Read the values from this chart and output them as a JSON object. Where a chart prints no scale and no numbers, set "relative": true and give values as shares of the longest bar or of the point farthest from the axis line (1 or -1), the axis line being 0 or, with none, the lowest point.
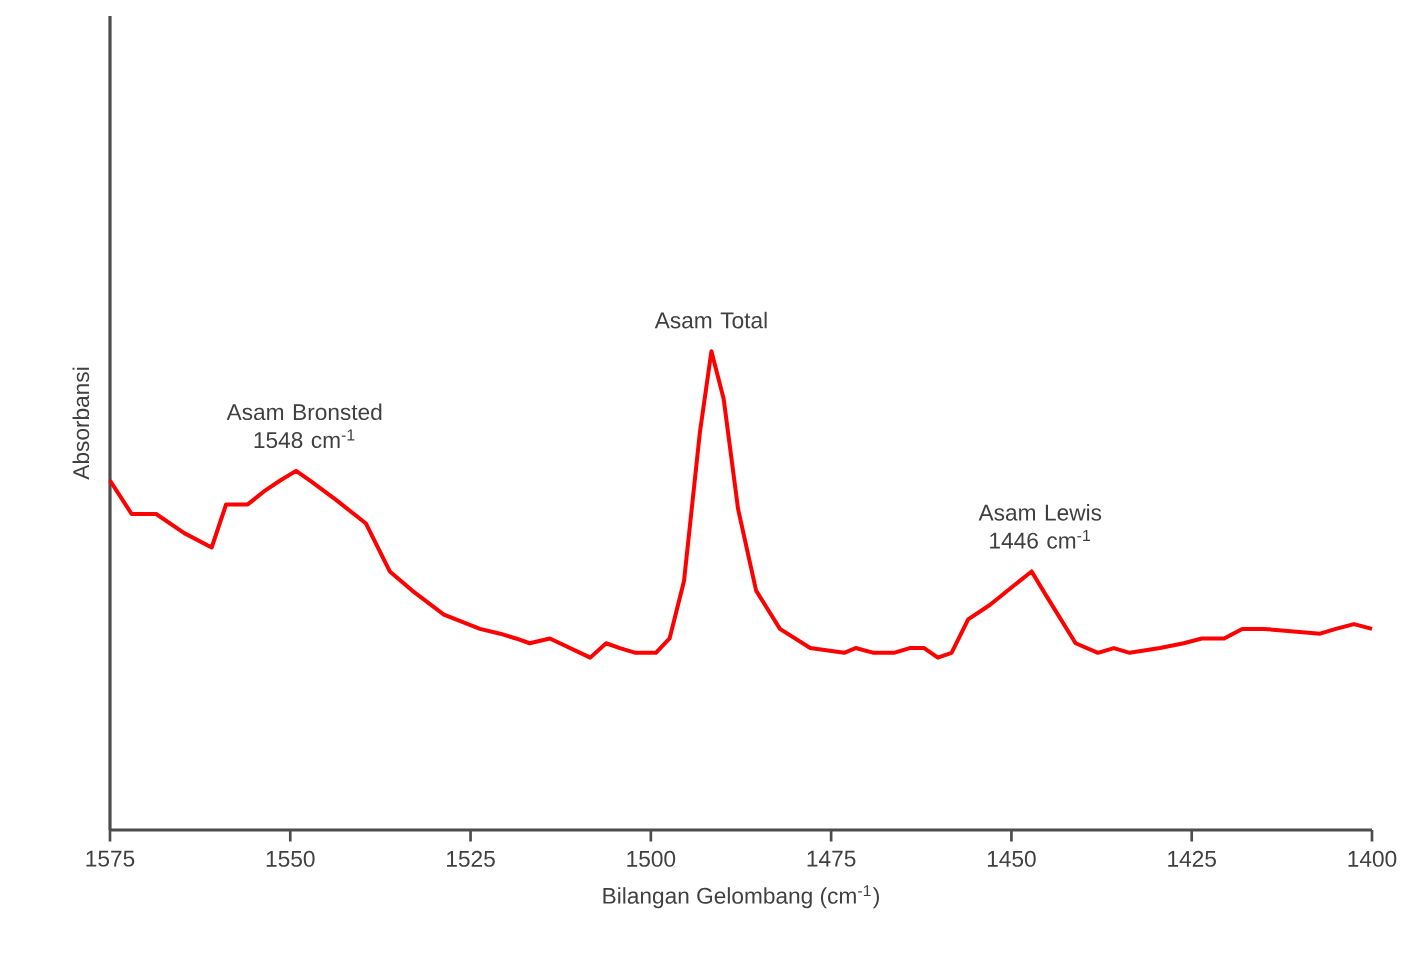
{
  "chart_data": {
    "type": "line",
    "relative": true,
    "xlabel": "Bilangan Gelombang (cm$^{-1}$)",
    "ylabel": "Absorbansi",
    "x": [
      1575,
      1572,
      1568.6,
      1564.7,
      1560.9,
      1558.9,
      1555.9,
      1553.4,
      1551.4,
      1549.2,
      1547.3,
      1543.7,
      1539.5,
      1536.2,
      1533.1,
      1528.7,
      1523.7,
      1520.9,
      1518.7,
      1516.8,
      1514,
      1508.4,
      1506.2,
      1504.3,
      1502.1,
      1499.3,
      1497.4,
      1495.4,
      1493.2,
      1491.6,
      1489.9,
      1487.9,
      1485.4,
      1482.1,
      1477.9,
      1473.2,
      1471.6,
      1469.1,
      1466.3,
      1464.1,
      1462.1,
      1460.2,
      1458.3,
      1456,
      1453,
      1449.7,
      1447.2,
      1445.2,
      1441.1,
      1438,
      1435.8,
      1433.6,
      1429.4,
      1426.1,
      1423.6,
      1420.5,
      1418,
      1415,
      1407.2,
      1405,
      1402.5,
      1400
    ],
    "series": [
      {
        "color": "#ff0000",
        "values": [
          0.73,
          0.66,
          0.66,
          0.62,
          0.59,
          0.68,
          0.68,
          0.71,
          0.73,
          0.75,
          0.73,
          0.69,
          0.64,
          0.54,
          0.5,
          0.45,
          0.42,
          0.41,
          0.4,
          0.39,
          0.4,
          0.36,
          0.39,
          0.38,
          0.37,
          0.37,
          0.4,
          0.52,
          0.83,
          1,
          0.9,
          0.67,
          0.5,
          0.42,
          0.38,
          0.37,
          0.38,
          0.37,
          0.37,
          0.38,
          0.38,
          0.36,
          0.37,
          0.44,
          0.47,
          0.51,
          0.54,
          0.49,
          0.39,
          0.37,
          0.38,
          0.37,
          0.38,
          0.39,
          0.4,
          0.4,
          0.42,
          0.42,
          0.41,
          0.42,
          0.43,
          0.42
        ]
      }
    ],
    "xlim": [
      1575,
      1400
    ],
    "xticks": [
      1575,
      1550,
      1525,
      1500,
      1475,
      1450,
      1425,
      1400
    ],
    "annotations": [
      {
        "text": "Asam Bronsted 1548 cm$^{-1}$",
        "x": 1548,
        "y": 0.75
      },
      {
        "text": "Asam Total",
        "x": 1491.6,
        "y": 1
      },
      {
        "text": "Asam Lewis 1446 cm$^{-1}$",
        "x": 1446,
        "y": 0.54
      }
    ]
  }
}
